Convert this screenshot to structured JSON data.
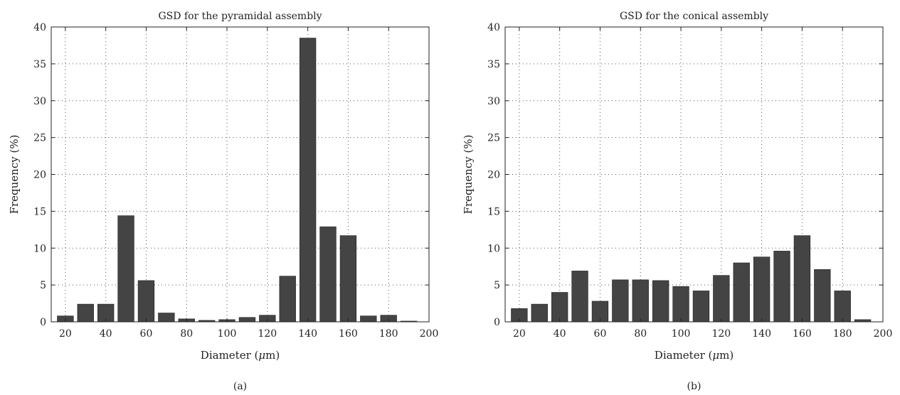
{
  "chart_data": [
    {
      "type": "bar",
      "title": "GSD for the pyramidal assembly",
      "xlabel_prefix": "Diameter (",
      "xlabel_mu": "μ",
      "xlabel_suffix": "m)",
      "ylabel": "Frequency (%)",
      "panel_label": "(a)",
      "x": [
        20,
        30,
        40,
        50,
        60,
        70,
        80,
        90,
        100,
        110,
        120,
        130,
        140,
        150,
        160,
        170,
        180,
        190
      ],
      "values": [
        0.8,
        2.4,
        2.4,
        14.4,
        5.6,
        1.2,
        0.4,
        0.2,
        0.3,
        0.6,
        0.9,
        6.2,
        38.5,
        12.9,
        11.7,
        0.8,
        0.9,
        0.1
      ],
      "xlim": [
        13,
        200
      ],
      "ylim": [
        0,
        40
      ],
      "xticks": [
        20,
        40,
        60,
        80,
        100,
        120,
        140,
        160,
        180,
        200
      ],
      "yticks": [
        0,
        5,
        10,
        15,
        20,
        25,
        30,
        35,
        40
      ],
      "grid": true,
      "bar_color": "#444444"
    },
    {
      "type": "bar",
      "title": "GSD for the conical assembly",
      "xlabel_prefix": "Diameter (",
      "xlabel_mu": "μ",
      "xlabel_suffix": "m)",
      "ylabel": "Frequency (%)",
      "panel_label": "(b)",
      "x": [
        20,
        30,
        40,
        50,
        60,
        70,
        80,
        90,
        100,
        110,
        120,
        130,
        140,
        150,
        160,
        170,
        180,
        190
      ],
      "values": [
        1.8,
        2.4,
        4.0,
        6.9,
        2.8,
        5.7,
        5.7,
        5.6,
        4.8,
        4.2,
        6.3,
        8.0,
        8.8,
        9.6,
        11.7,
        7.1,
        4.2,
        0.3
      ],
      "xlim": [
        13,
        200
      ],
      "ylim": [
        0,
        40
      ],
      "xticks": [
        20,
        40,
        60,
        80,
        100,
        120,
        140,
        160,
        180,
        200
      ],
      "yticks": [
        0,
        5,
        10,
        15,
        20,
        25,
        30,
        35,
        40
      ],
      "grid": true,
      "bar_color": "#444444"
    }
  ]
}
